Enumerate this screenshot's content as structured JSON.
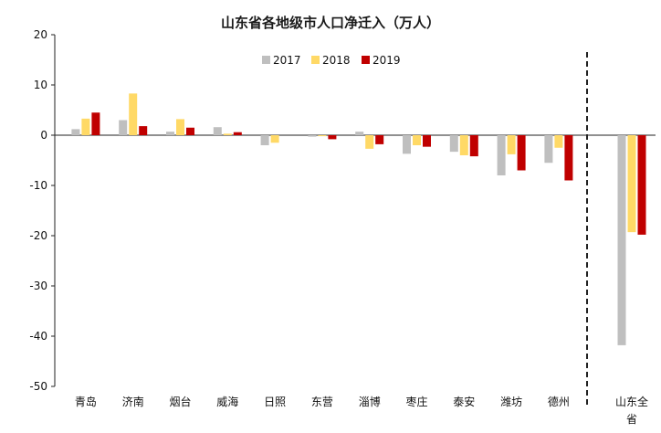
{
  "chart_data": {
    "type": "bar",
    "title": "山东省各地级市人口净迁入（万人）",
    "xlabel": "",
    "ylabel": "",
    "ylim": [
      -50,
      20
    ],
    "yticks": [
      20,
      10,
      0,
      -10,
      -20,
      -30,
      -40,
      -50
    ],
    "categories": [
      "青岛",
      "济南",
      "烟台",
      "威海",
      "日照",
      "东营",
      "淄博",
      "枣庄",
      "泰安",
      "潍坊",
      "德州"
    ],
    "total_category": [
      "山东全",
      "省"
    ],
    "series": [
      {
        "name": "2017",
        "color": "#bfbfbf",
        "values": [
          1.2,
          3.0,
          0.7,
          1.6,
          -2.0,
          -0.3,
          0.7,
          -3.7,
          -3.3,
          -8.0,
          -5.5
        ],
        "total": -41.8
      },
      {
        "name": "2018",
        "color": "#ffd966",
        "values": [
          3.3,
          8.3,
          3.2,
          0.3,
          -1.5,
          -0.2,
          -2.7,
          -2.0,
          -4.0,
          -3.8,
          -2.5
        ],
        "total": -19.3
      },
      {
        "name": "2019",
        "color": "#c00000",
        "values": [
          4.5,
          1.8,
          1.5,
          0.6,
          0.0,
          -0.8,
          -1.8,
          -2.3,
          -4.2,
          -7.0,
          -9.0
        ],
        "total": -19.8
      }
    ],
    "grid": false,
    "legend_position": "top-center",
    "separator": "dashed vertical line before total"
  }
}
